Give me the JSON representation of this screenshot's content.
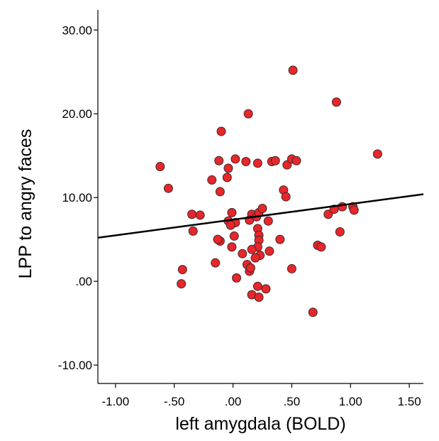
{
  "chart_data": {
    "type": "scatter",
    "xlabel": "left amygdala (BOLD)",
    "ylabel": "LPP to angry faces",
    "xlim": [
      -1.15,
      1.62
    ],
    "ylim": [
      -12.2,
      32.4
    ],
    "x_ticks": [
      -1.0,
      -0.5,
      0.0,
      0.5,
      1.0,
      1.5
    ],
    "x_tick_labels": [
      "-1.00",
      "-.50",
      ".00",
      ".50",
      "1.00",
      "1.50"
    ],
    "y_ticks": [
      -10,
      0,
      10,
      20,
      30
    ],
    "y_tick_labels": [
      "-10.00",
      ".00",
      "10.00",
      "20.00",
      "30.00"
    ],
    "grid": false,
    "marker_color": "#e8262b",
    "marker_edge_color": "#3a2a2a",
    "fit_line_color": "#000000",
    "fit_line": {
      "x": [
        -1.15,
        1.62
      ],
      "y": [
        5.2,
        10.4
      ]
    },
    "points": [
      {
        "x": 0.51,
        "y": 25.2
      },
      {
        "x": 0.88,
        "y": 21.4
      },
      {
        "x": 0.13,
        "y": 20.0
      },
      {
        "x": -0.1,
        "y": 17.9
      },
      {
        "x": 1.23,
        "y": 15.2
      },
      {
        "x": -0.62,
        "y": 13.7
      },
      {
        "x": -0.55,
        "y": 11.1
      },
      {
        "x": -0.12,
        "y": 14.4
      },
      {
        "x": 0.02,
        "y": 14.6
      },
      {
        "x": 0.11,
        "y": 14.3
      },
      {
        "x": 0.21,
        "y": 14.1
      },
      {
        "x": 0.33,
        "y": 14.3
      },
      {
        "x": 0.36,
        "y": 14.4
      },
      {
        "x": 0.46,
        "y": 13.9
      },
      {
        "x": 0.5,
        "y": 14.6
      },
      {
        "x": 0.54,
        "y": 14.4
      },
      {
        "x": -0.04,
        "y": 13.5
      },
      {
        "x": -0.05,
        "y": 12.4
      },
      {
        "x": -0.18,
        "y": 12.1
      },
      {
        "x": -0.11,
        "y": 10.7
      },
      {
        "x": 0.43,
        "y": 10.9
      },
      {
        "x": 0.45,
        "y": 10.1
      },
      {
        "x": -0.35,
        "y": 8.0
      },
      {
        "x": -0.28,
        "y": 7.9
      },
      {
        "x": -0.34,
        "y": 6.0
      },
      {
        "x": -0.04,
        "y": 7.2
      },
      {
        "x": -0.01,
        "y": 8.2
      },
      {
        "x": 0.02,
        "y": 7.0
      },
      {
        "x": -0.02,
        "y": 6.7
      },
      {
        "x": 0.16,
        "y": 8.0
      },
      {
        "x": 0.14,
        "y": 7.3
      },
      {
        "x": 0.2,
        "y": 7.7
      },
      {
        "x": 0.22,
        "y": 8.2
      },
      {
        "x": 0.25,
        "y": 8.7
      },
      {
        "x": 0.21,
        "y": 6.3
      },
      {
        "x": 0.3,
        "y": 7.2
      },
      {
        "x": 0.81,
        "y": 8.0
      },
      {
        "x": 0.86,
        "y": 8.6
      },
      {
        "x": 0.93,
        "y": 8.9
      },
      {
        "x": 1.02,
        "y": 8.9
      },
      {
        "x": 1.03,
        "y": 8.5
      },
      {
        "x": -0.11,
        "y": 4.8
      },
      {
        "x": -0.13,
        "y": 5.0
      },
      {
        "x": 0.01,
        "y": 5.4
      },
      {
        "x": 0.22,
        "y": 5.5
      },
      {
        "x": 0.22,
        "y": 4.9
      },
      {
        "x": 0.21,
        "y": 4.1
      },
      {
        "x": -0.01,
        "y": 4.1
      },
      {
        "x": 0.16,
        "y": 3.8
      },
      {
        "x": 0.23,
        "y": 3.1
      },
      {
        "x": 0.08,
        "y": 3.3
      },
      {
        "x": 0.19,
        "y": 2.8
      },
      {
        "x": 0.31,
        "y": 3.6
      },
      {
        "x": 0.4,
        "y": 5.0
      },
      {
        "x": -0.15,
        "y": 2.2
      },
      {
        "x": 0.12,
        "y": 2.0
      },
      {
        "x": 0.14,
        "y": 1.2
      },
      {
        "x": 0.15,
        "y": 1.6
      },
      {
        "x": -0.43,
        "y": 1.4
      },
      {
        "x": 0.03,
        "y": 0.4
      },
      {
        "x": 0.5,
        "y": 1.5
      },
      {
        "x": 0.72,
        "y": 4.3
      },
      {
        "x": 0.75,
        "y": 4.1
      },
      {
        "x": 0.91,
        "y": 5.9
      },
      {
        "x": -0.44,
        "y": -0.3
      },
      {
        "x": 0.21,
        "y": -0.6
      },
      {
        "x": 0.28,
        "y": -0.9
      },
      {
        "x": 0.16,
        "y": -1.6
      },
      {
        "x": 0.22,
        "y": -1.9
      },
      {
        "x": 0.68,
        "y": -3.7
      }
    ]
  }
}
